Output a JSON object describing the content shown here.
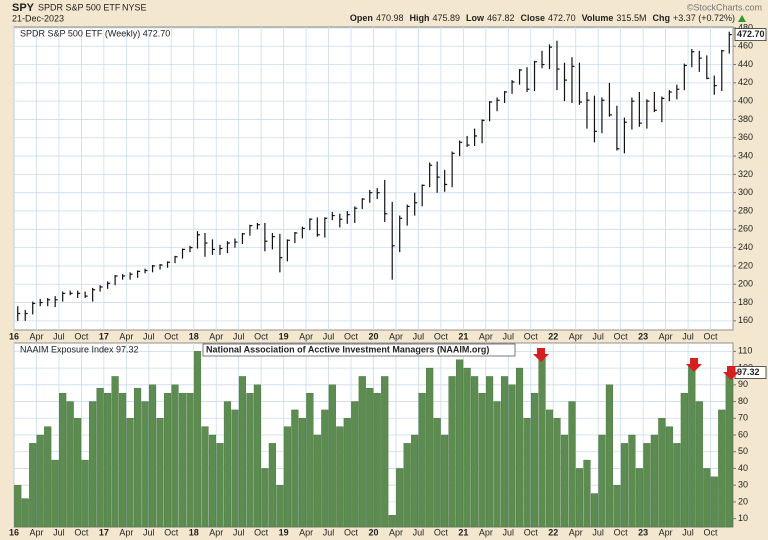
{
  "header": {
    "symbol": "SPY",
    "name": "SPDR S&P 500 ETF",
    "exchange": "NYSE",
    "date": "21-Dec-2023",
    "source": "©StockCharts.com",
    "quotes": [
      {
        "label": "Open",
        "value": "470.98"
      },
      {
        "label": "High",
        "value": "475.89"
      },
      {
        "label": "Low",
        "value": "467.82"
      },
      {
        "label": "Close",
        "value": "472.70"
      },
      {
        "label": "Volume",
        "value": "315.5M"
      },
      {
        "label": "Chg",
        "value": "+3.37 (+0.72%)"
      }
    ]
  },
  "chart_data": [
    {
      "type": "ohlc",
      "legend": "SPDR S&P 500 ETF (Weekly) 472.70",
      "last_label": "472.70",
      "color": "#111111",
      "categories": [
        "16",
        null,
        null,
        "Apr",
        null,
        null,
        "Jul",
        null,
        null,
        "Oct",
        null,
        null,
        "17",
        null,
        null,
        "Apr",
        null,
        null,
        "Jul",
        null,
        null,
        "Oct",
        null,
        null,
        "18",
        null,
        null,
        "Apr",
        null,
        null,
        "Jul",
        null,
        null,
        "Oct",
        null,
        null,
        "19",
        null,
        null,
        "Apr",
        null,
        null,
        "Jul",
        null,
        null,
        "Oct",
        null,
        null,
        "20",
        null,
        null,
        "Apr",
        null,
        null,
        "Jul",
        null,
        null,
        "Oct",
        null,
        null,
        "21",
        null,
        null,
        "Apr",
        null,
        null,
        "Jul",
        null,
        null,
        "Oct",
        null,
        null,
        "22",
        null,
        null,
        "Apr",
        null,
        null,
        "Jul",
        null,
        null,
        "Oct",
        null,
        null,
        "23",
        null,
        null,
        "Apr",
        null,
        null,
        "Jul",
        null,
        null,
        "Oct",
        null,
        null
      ],
      "high": [
        176,
        172,
        181,
        184,
        185,
        187,
        192,
        193,
        193,
        192,
        196,
        199,
        203,
        210,
        211,
        213,
        215,
        217,
        221,
        222,
        225,
        231,
        239,
        242,
        258,
        256,
        249,
        243,
        247,
        250,
        256,
        265,
        267,
        267,
        256,
        255,
        249,
        257,
        263,
        272,
        273,
        273,
        279,
        277,
        280,
        285,
        294,
        303,
        305,
        314,
        290,
        275,
        287,
        300,
        309,
        333,
        334,
        325,
        345,
        357,
        362,
        370,
        380,
        400,
        404,
        411,
        423,
        435,
        437,
        444,
        455,
        462,
        466,
        442,
        448,
        442,
        410,
        406,
        404,
        420,
        395,
        382,
        404,
        410,
        402,
        410,
        405,
        412,
        418,
        441,
        457,
        455,
        450,
        428,
        456,
        475.89
      ],
      "low": [
        160,
        160,
        167,
        176,
        176,
        175,
        181,
        188,
        185,
        185,
        181,
        192,
        195,
        199,
        205,
        205,
        207,
        212,
        213,
        216,
        218,
        223,
        228,
        235,
        239,
        230,
        232,
        232,
        234,
        240,
        244,
        253,
        260,
        236,
        238,
        213,
        225,
        245,
        250,
        259,
        252,
        251,
        270,
        262,
        266,
        267,
        282,
        289,
        293,
        268,
        205,
        235,
        264,
        275,
        285,
        306,
        300,
        301,
        306,
        340,
        350,
        351,
        354,
        378,
        389,
        398,
        408,
        418,
        410,
        411,
        436,
        435,
        412,
        400,
        398,
        396,
        370,
        355,
        365,
        383,
        346,
        343,
        369,
        372,
        370,
        388,
        377,
        400,
        402,
        412,
        437,
        432,
        424,
        407,
        411,
        452
      ],
      "close": [
        168,
        168,
        179,
        180,
        183,
        183,
        190,
        190,
        190,
        187,
        194,
        197,
        201,
        209,
        209,
        211,
        214,
        215,
        220,
        221,
        224,
        230,
        238,
        240,
        254,
        245,
        238,
        239,
        245,
        246,
        255,
        264,
        265,
        247,
        252,
        229,
        248,
        256,
        261,
        271,
        254,
        272,
        275,
        271,
        276,
        283,
        293,
        300,
        300,
        277,
        242,
        272,
        285,
        289,
        308,
        330,
        317,
        309,
        343,
        355,
        352,
        362,
        379,
        399,
        401,
        410,
        421,
        434,
        413,
        443,
        440,
        459,
        435,
        423,
        438,
        399,
        401,
        367,
        401,
        385,
        348,
        377,
        400,
        376,
        400,
        390,
        403,
        410,
        413,
        439,
        454,
        447,
        425,
        417,
        455,
        472.7
      ],
      "ylim": [
        150,
        481
      ],
      "yticks": [
        160,
        180,
        200,
        220,
        240,
        260,
        280,
        300,
        320,
        340,
        360,
        380,
        400,
        420,
        440,
        460,
        480
      ],
      "grid": true
    },
    {
      "type": "bar",
      "legend": "NAAIM Exposure Index 97.32",
      "annotation": "National Association of Acctive Investment Managers (NAAIM.org)",
      "color": "#5d8c51",
      "categories": [
        "16",
        null,
        null,
        "Apr",
        null,
        null,
        "Jul",
        null,
        null,
        "Oct",
        null,
        null,
        "17",
        null,
        null,
        "Apr",
        null,
        null,
        "Jul",
        null,
        null,
        "Oct",
        null,
        null,
        "18",
        null,
        null,
        "Apr",
        null,
        null,
        "Jul",
        null,
        null,
        "Oct",
        null,
        null,
        "19",
        null,
        null,
        "Apr",
        null,
        null,
        "Jul",
        null,
        null,
        "Oct",
        null,
        null,
        "20",
        null,
        null,
        "Apr",
        null,
        null,
        "Jul",
        null,
        null,
        "Oct",
        null,
        null,
        "21",
        null,
        null,
        "Apr",
        null,
        null,
        "Jul",
        null,
        null,
        "Oct",
        null,
        null,
        "22",
        null,
        null,
        "Apr",
        null,
        null,
        "Jul",
        null,
        null,
        "Oct",
        null,
        null,
        "23",
        null,
        null,
        "Apr",
        null,
        null,
        "Jul",
        null,
        null,
        "Oct",
        null,
        null
      ],
      "values": [
        30,
        22,
        55,
        60,
        65,
        45,
        85,
        80,
        70,
        45,
        80,
        88,
        85,
        95,
        85,
        70,
        88,
        80,
        90,
        70,
        85,
        90,
        85,
        85,
        110,
        65,
        60,
        55,
        80,
        75,
        95,
        85,
        90,
        40,
        55,
        30,
        65,
        75,
        70,
        85,
        60,
        75,
        90,
        65,
        70,
        80,
        95,
        88,
        85,
        95,
        12,
        40,
        55,
        60,
        85,
        100,
        70,
        60,
        95,
        105,
        100,
        95,
        85,
        95,
        80,
        95,
        90,
        100,
        70,
        85,
        106,
        75,
        70,
        60,
        80,
        40,
        45,
        25,
        60,
        90,
        30,
        55,
        60,
        40,
        55,
        60,
        70,
        65,
        55,
        85,
        102,
        80,
        40,
        35,
        75,
        97.32
      ],
      "ylim": [
        5,
        115
      ],
      "yticks": [
        10,
        20,
        30,
        40,
        50,
        60,
        70,
        80,
        90,
        100,
        110
      ],
      "grid": true
    }
  ]
}
